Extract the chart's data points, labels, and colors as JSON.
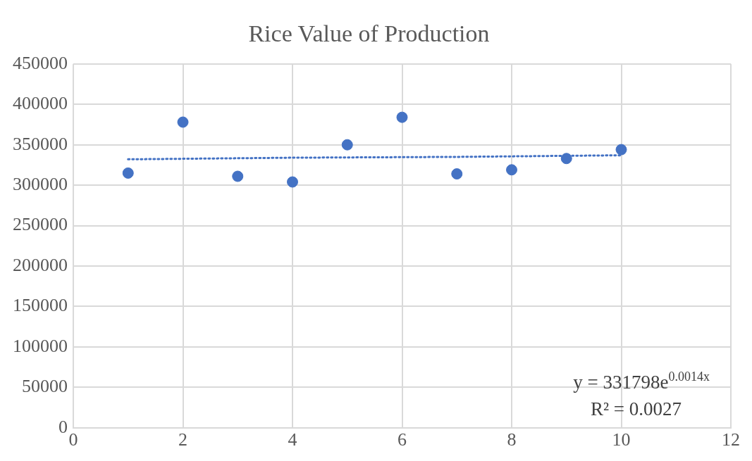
{
  "chart_data": {
    "type": "scatter",
    "title": "Rice Value of Production",
    "x": [
      1,
      2,
      3,
      4,
      5,
      6,
      7,
      8,
      9,
      10
    ],
    "series": [
      {
        "type": "scatter",
        "marker": "circle",
        "color": "#4472c4",
        "values": [
          315000,
          378000,
          311000,
          304000,
          350000,
          384000,
          314000,
          319000,
          333000,
          344000
        ]
      },
      {
        "type": "line",
        "color": "#4472c4",
        "line_style": "dotted",
        "x": [
          1,
          4,
          7,
          10
        ],
        "values": [
          332000,
          334000,
          335000,
          337000
        ]
      }
    ],
    "xlim": [
      0,
      12
    ],
    "xticks": [
      0,
      2,
      4,
      6,
      8,
      10,
      12
    ],
    "ylim": [
      0,
      450000
    ],
    "yticks": [
      0,
      50000,
      100000,
      150000,
      200000,
      250000,
      300000,
      350000,
      400000,
      450000
    ],
    "grid": true,
    "legend": false,
    "annotations": [
      "y = 331798e$^{0.0014x}$",
      "R² = 0.0027"
    ]
  }
}
